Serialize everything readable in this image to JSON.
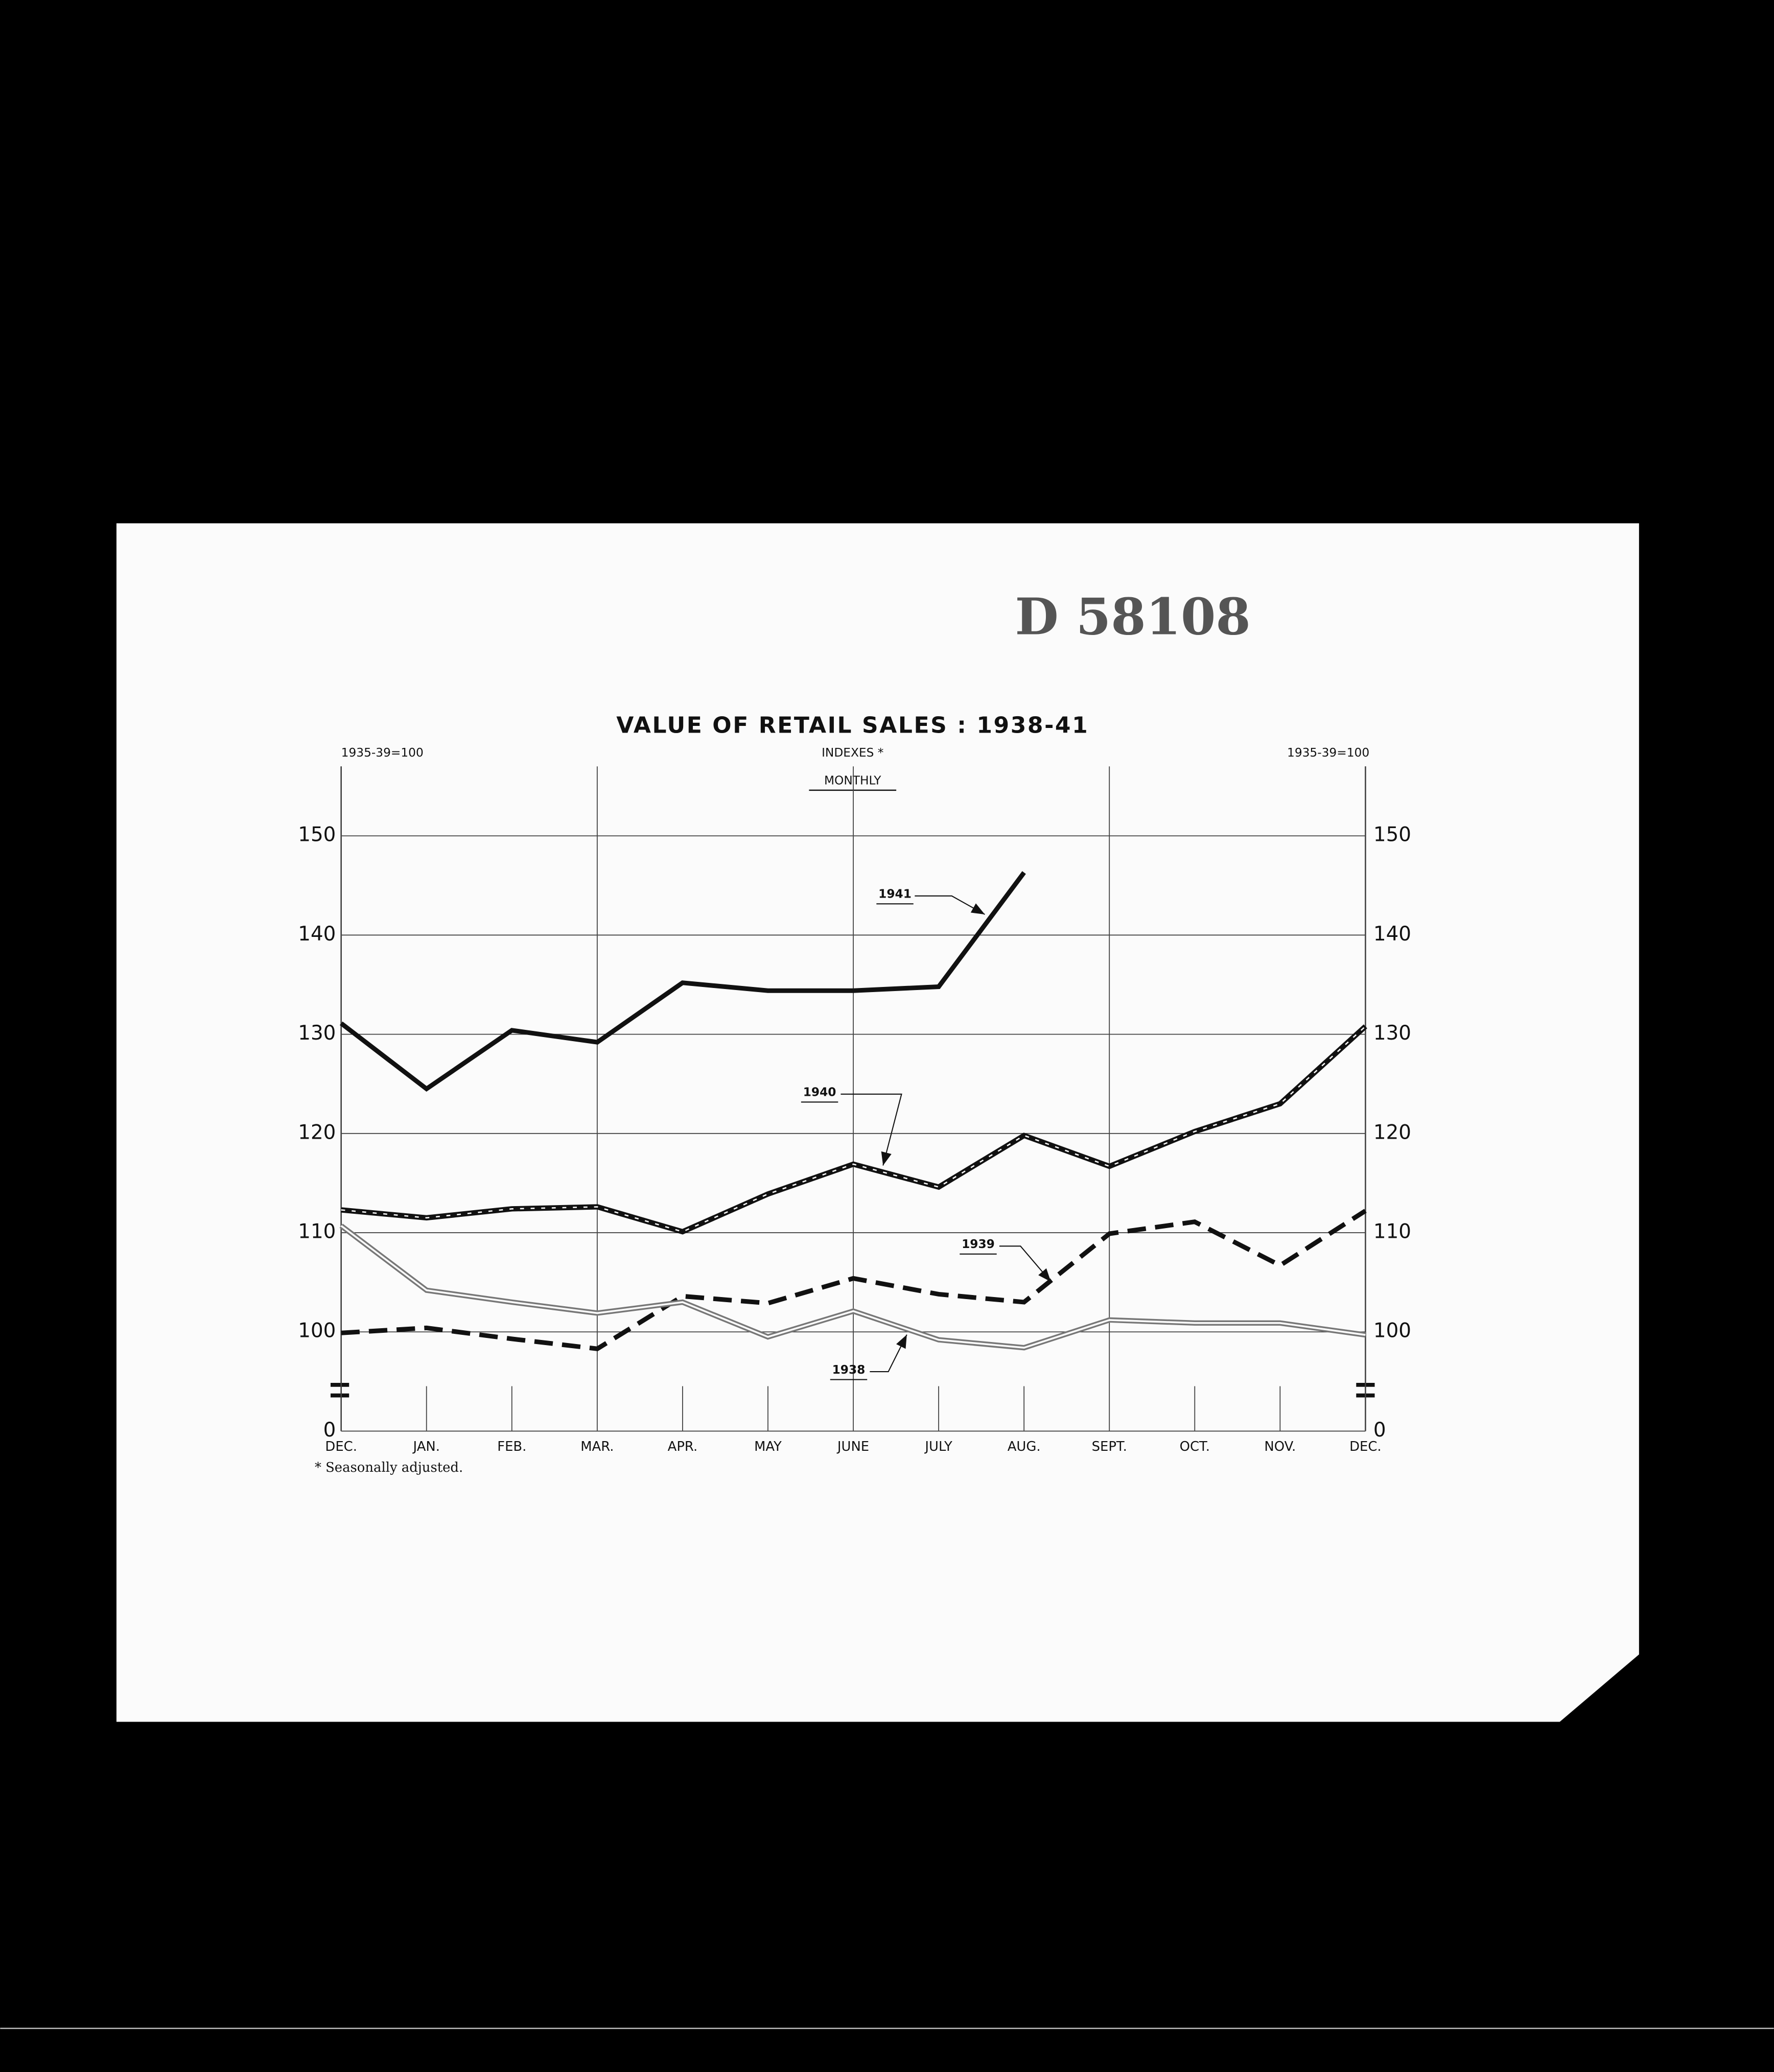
{
  "stamp": "D 58108",
  "chart_data": {
    "type": "line",
    "title": "VALUE OF RETAIL SALES : 1938-41",
    "subtitle": "INDEXES *",
    "period_label": "MONTHLY",
    "left_axis_label": "1935-39=100",
    "right_axis_label": "1935-39=100",
    "footnote": "* Seasonally adjusted.",
    "categories": [
      "DEC.",
      "JAN.",
      "FEB.",
      "MAR.",
      "APR.",
      "MAY",
      "JUNE",
      "JULY",
      "AUG.",
      "SEPT.",
      "OCT.",
      "NOV.",
      "DEC."
    ],
    "ylim": [
      0,
      157
    ],
    "ybreak": [
      0,
      90
    ],
    "yticks": [
      0,
      100,
      110,
      120,
      130,
      140,
      150
    ],
    "grid": true,
    "series": [
      {
        "name": "1941",
        "color": "#111111",
        "style": "solid",
        "values": [
          131.1,
          124.5,
          130.4,
          129.2,
          135.2,
          134.4,
          134.4,
          134.8,
          146.3,
          null,
          null,
          null,
          null
        ]
      },
      {
        "name": "1940",
        "color": "#111111",
        "style": "dashed-center",
        "values": [
          112.3,
          111.5,
          112.4,
          112.6,
          110.1,
          113.9,
          116.9,
          114.6,
          119.8,
          116.7,
          120.2,
          123.0,
          130.8
        ]
      },
      {
        "name": "1939",
        "color": "#111111",
        "style": "dashed",
        "values": [
          99.9,
          100.4,
          99.3,
          98.3,
          103.6,
          102.9,
          105.4,
          103.8,
          103.0,
          109.9,
          111.1,
          106.7,
          112.2
        ]
      },
      {
        "name": "1938",
        "color": "#777777",
        "style": "double",
        "values": [
          110.7,
          104.2,
          103.0,
          101.9,
          103.0,
          99.5,
          102.1,
          99.2,
          98.4,
          101.2,
          100.9,
          100.9,
          99.7
        ]
      }
    ]
  }
}
